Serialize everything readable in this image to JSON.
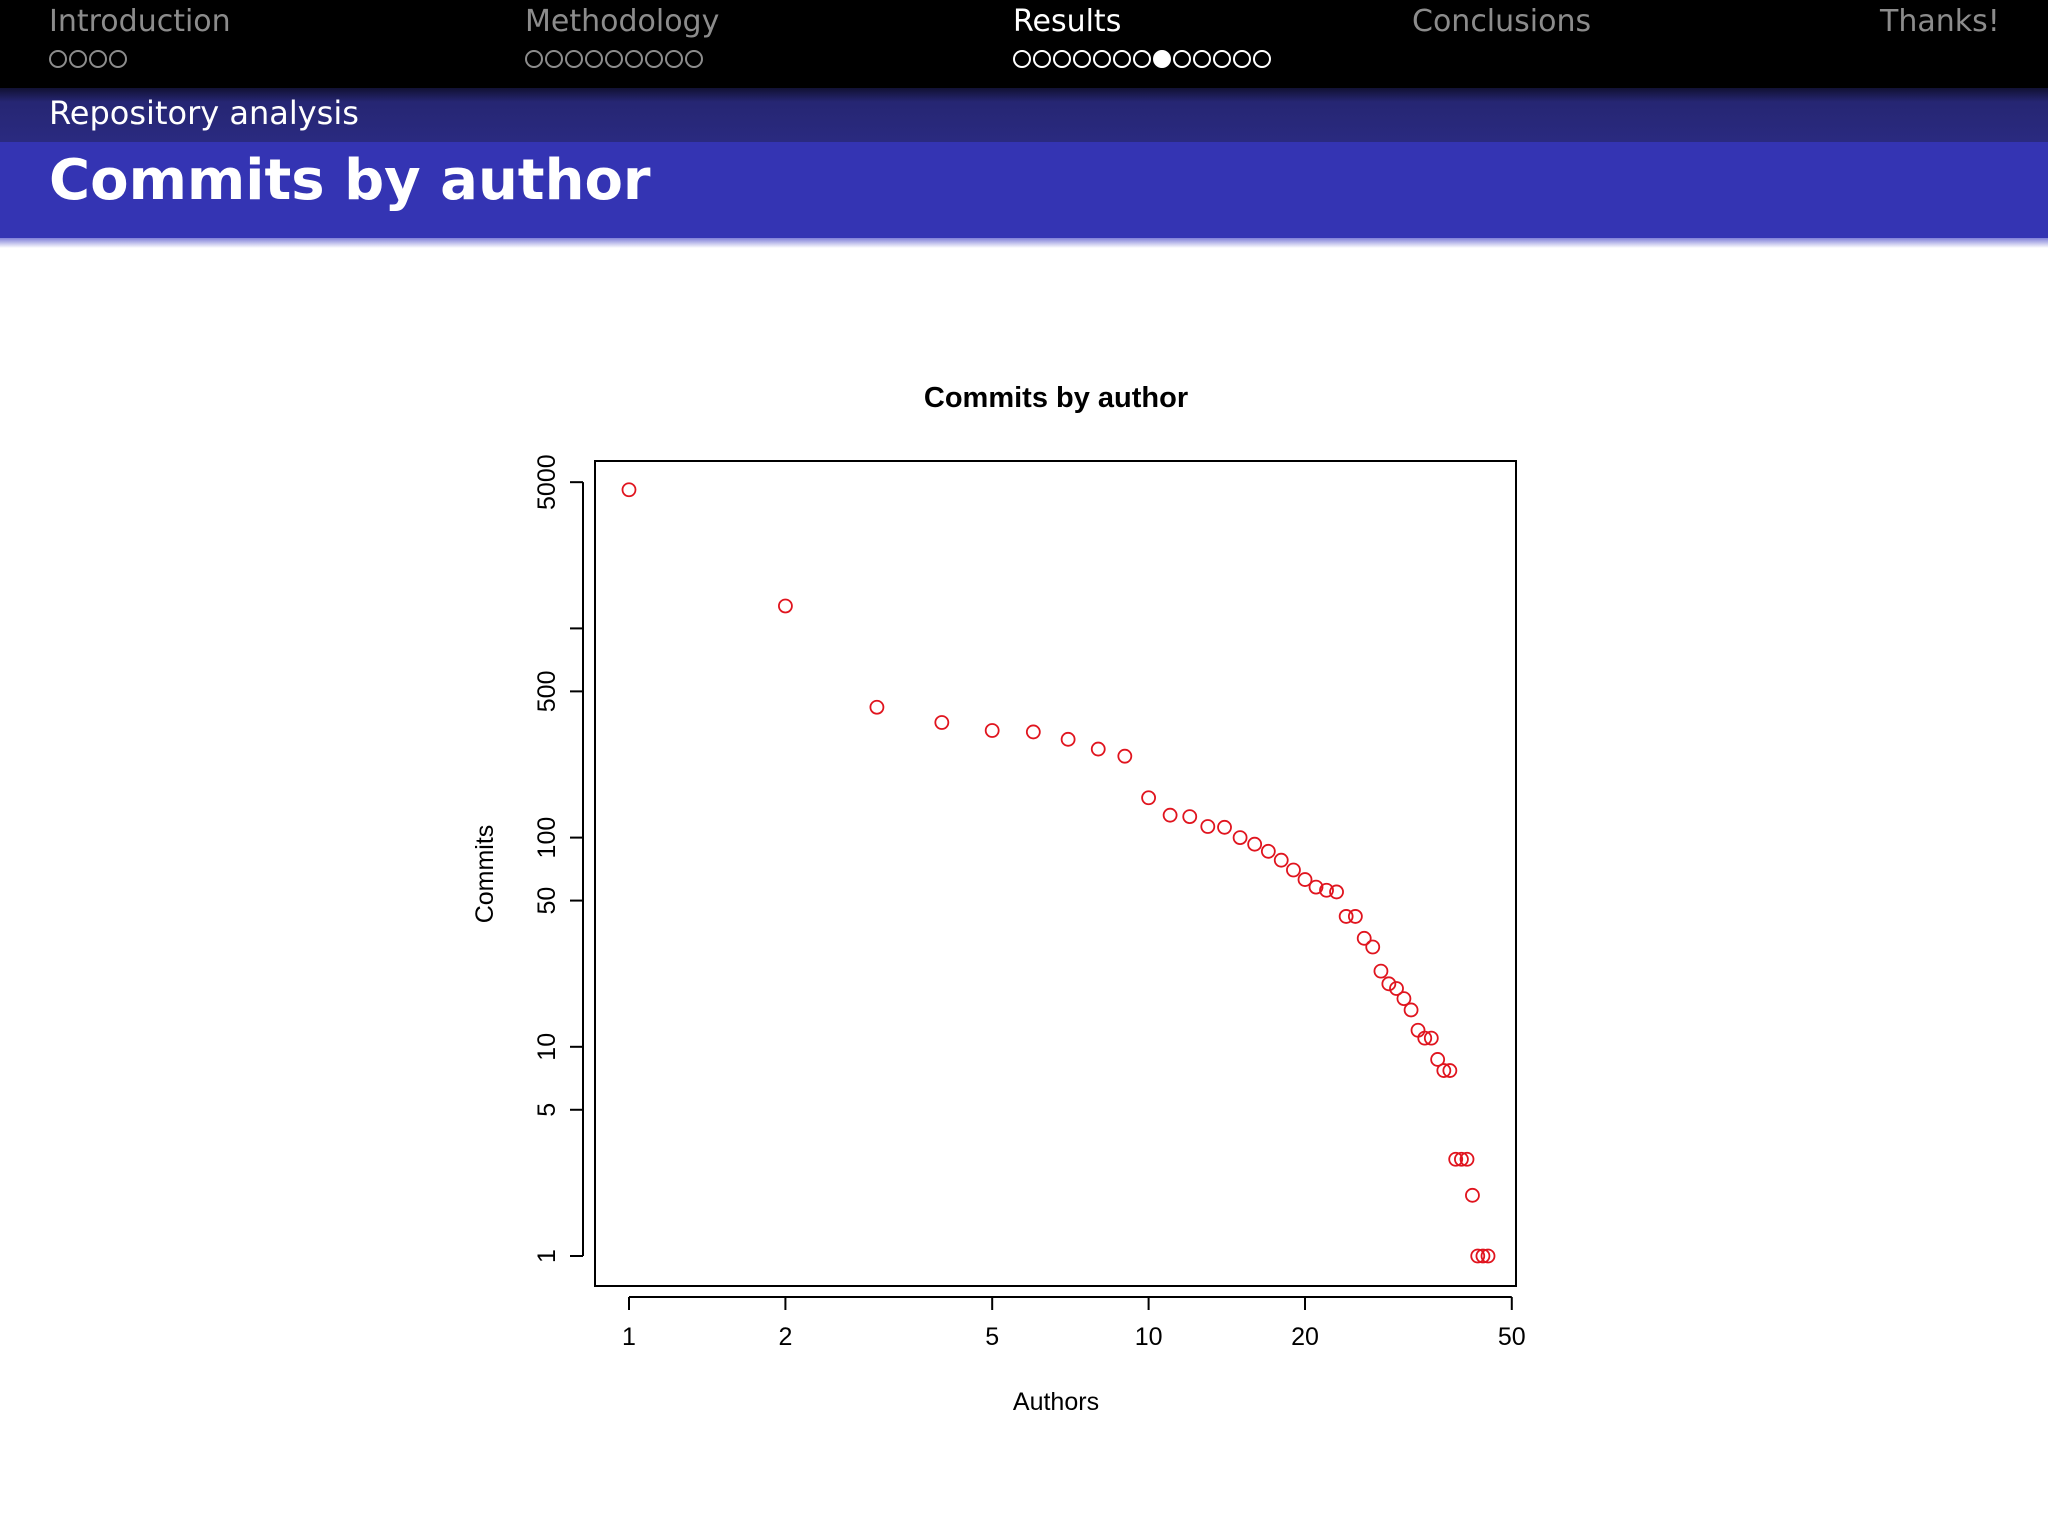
{
  "navigation": {
    "sections": [
      {
        "title": "Introduction",
        "frames": 4,
        "current": -1
      },
      {
        "title": "Methodology",
        "frames": 9,
        "current": -1
      },
      {
        "title": "Results",
        "frames": 13,
        "current": 7
      },
      {
        "title": "Conclusions",
        "frames": 0,
        "current": -1
      },
      {
        "title": "Thanks!",
        "frames": 0,
        "current": -1
      }
    ],
    "active_section": "Results"
  },
  "subsection": "Repository analysis",
  "frame_title": "Commits by author",
  "colors": {
    "navbar": "#000000",
    "subsection_bar": "#2a2a80",
    "title_bar": "#3434b3",
    "point": "#e0141e"
  },
  "chart_data": {
    "type": "scatter",
    "title": "Commits by author",
    "xlabel": "Authors",
    "ylabel": "Commits",
    "x_scale": "log",
    "y_scale": "log",
    "xlim": [
      1,
      50
    ],
    "ylim": [
      1,
      5000
    ],
    "x_ticks": [
      1,
      2,
      5,
      10,
      20,
      50
    ],
    "y_ticks": [
      1,
      5,
      10,
      50,
      100,
      500,
      5000
    ],
    "y_minor_ticks": [
      1000
    ],
    "grid": false,
    "marker": "open-circle",
    "series": [
      {
        "x": [
          1,
          2,
          3,
          4,
          5,
          6,
          7,
          8,
          9,
          10,
          11,
          12,
          13,
          14,
          15,
          16,
          17,
          18,
          19,
          20,
          21,
          22,
          23,
          24,
          25,
          26,
          27,
          28,
          29,
          30,
          31,
          32,
          33,
          34,
          35,
          36,
          37,
          38,
          39,
          40,
          41,
          42,
          43,
          44,
          45
        ],
        "values": [
          4600,
          1280,
          420,
          355,
          325,
          320,
          295,
          265,
          245,
          155,
          128,
          126,
          113,
          112,
          100,
          93,
          86,
          78,
          70,
          63,
          58,
          56,
          55,
          42,
          42,
          33,
          30,
          23,
          20,
          19,
          17,
          15,
          12,
          11,
          11,
          8.7,
          7.7,
          7.7,
          2.9,
          2.9,
          2.9,
          1.95,
          1,
          1,
          1
        ]
      }
    ]
  }
}
